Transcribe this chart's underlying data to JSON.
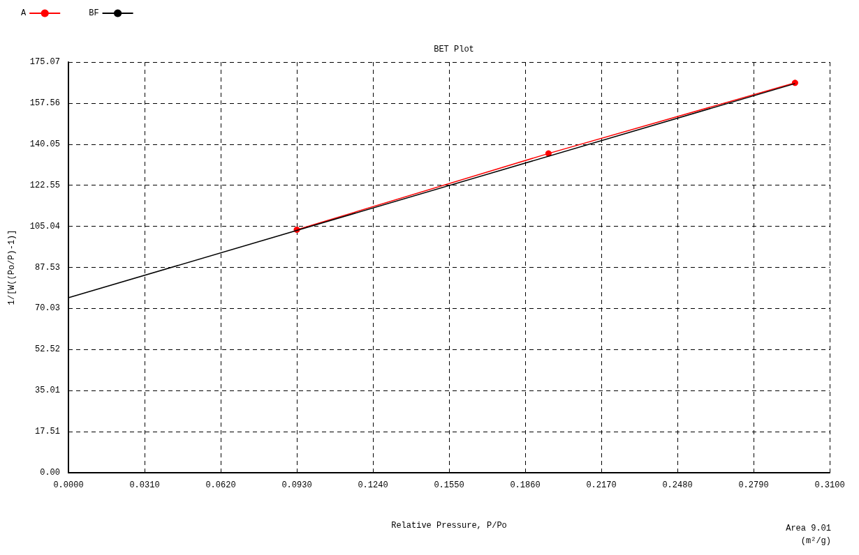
{
  "chart_data": {
    "type": "line",
    "title": "BET Plot",
    "xlabel": "Relative Pressure, P/Po",
    "ylabel": "1/[W((Po/P)-1)]",
    "annotations": [
      "Area 9.01",
      "(m²/g)"
    ],
    "series": [
      {
        "name": "A",
        "color": "#ff0000",
        "x": [
          0.093,
          0.1955,
          0.2959
        ],
        "values": [
          103.6,
          136.1,
          166.2
        ],
        "marker": "circle"
      },
      {
        "name": "BF",
        "color": "#000000",
        "x": [
          0,
          0.2959
        ],
        "values": [
          74.6,
          165.9
        ],
        "marker": "none"
      }
    ],
    "xlim": [
      0,
      0.31
    ],
    "xticks": [
      {
        "value": 0,
        "label": "0.0000"
      },
      {
        "value": 0.031,
        "label": "0.0310"
      },
      {
        "value": 0.062,
        "label": "0.0620"
      },
      {
        "value": 0.093,
        "label": "0.0930"
      },
      {
        "value": 0.124,
        "label": "0.1240"
      },
      {
        "value": 0.155,
        "label": "0.1550"
      },
      {
        "value": 0.186,
        "label": "0.1860"
      },
      {
        "value": 0.217,
        "label": "0.2170"
      },
      {
        "value": 0.248,
        "label": "0.2480"
      },
      {
        "value": 0.279,
        "label": "0.2790"
      },
      {
        "value": 0.31,
        "label": "0.3100"
      }
    ],
    "ylim": [
      0,
      175.07
    ],
    "yticks": [
      {
        "value": 0,
        "label": "0.00"
      },
      17.51,
      35.01,
      52.52,
      70.03,
      87.53,
      105.04,
      122.55,
      140.05,
      157.56,
      175.07
    ],
    "grid": true,
    "legend": "top left",
    "line_style": "solid"
  }
}
